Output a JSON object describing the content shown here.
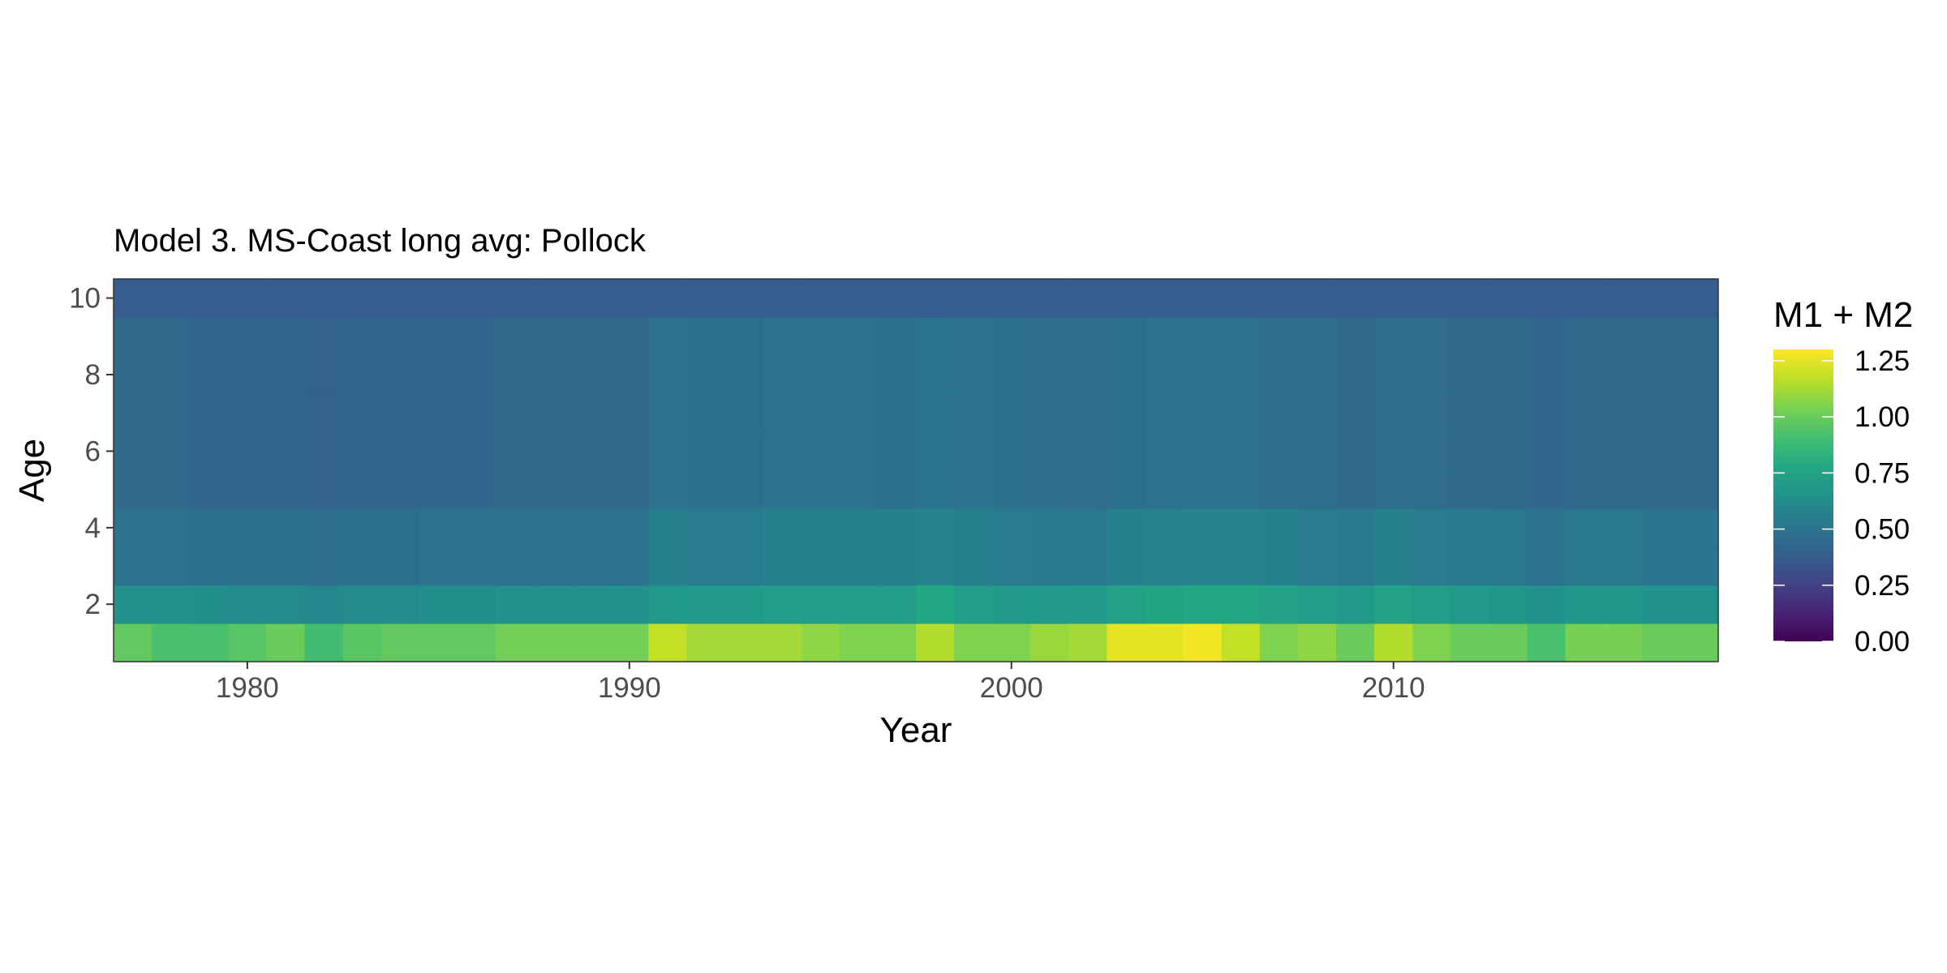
{
  "chart_data": {
    "type": "heatmap",
    "title": "Model 3. MS-Coast long avg: Pollock",
    "xlabel": "Year",
    "ylabel": "Age",
    "x": [
      1977,
      1978,
      1979,
      1980,
      1981,
      1982,
      1983,
      1984,
      1985,
      1986,
      1987,
      1988,
      1989,
      1990,
      1991,
      1992,
      1993,
      1994,
      1995,
      1996,
      1997,
      1998,
      1999,
      2000,
      2001,
      2002,
      2003,
      2004,
      2005,
      2006,
      2007,
      2008,
      2009,
      2010,
      2011,
      2012,
      2013,
      2014,
      2015,
      2016,
      2017,
      2018
    ],
    "y": [
      1,
      2,
      3,
      4,
      5,
      6,
      7,
      8,
      9,
      10
    ],
    "xlim": [
      1976.5,
      2018.5
    ],
    "ylim": [
      0.5,
      10.5
    ],
    "x_ticks": [
      1980,
      1990,
      2000,
      2010
    ],
    "y_ticks": [
      2,
      4,
      6,
      8,
      10
    ],
    "grid": false,
    "legend": {
      "title": "M1 + M2",
      "position": "right",
      "colorscale": "viridis",
      "range": [
        0,
        1.3
      ],
      "ticks": [
        0,
        0.25,
        0.5,
        0.75,
        1.0,
        1.25
      ],
      "tick_labels": [
        "0.00",
        "0.25",
        "0.50",
        "0.75",
        "1.00",
        "1.25"
      ]
    },
    "age1_values": [
      0.98,
      0.92,
      0.92,
      0.95,
      1.0,
      0.9,
      0.96,
      0.98,
      0.98,
      0.98,
      1.02,
      1.02,
      1.02,
      1.02,
      1.18,
      1.12,
      1.12,
      1.12,
      1.08,
      1.05,
      1.05,
      1.15,
      1.05,
      1.05,
      1.1,
      1.12,
      1.25,
      1.25,
      1.28,
      1.18,
      1.05,
      1.08,
      1.0,
      1.15,
      1.05,
      1.0,
      1.0,
      0.92,
      1.03,
      1.03,
      1.0,
      1.0
    ],
    "age2_values": [
      0.66,
      0.66,
      0.64,
      0.62,
      0.62,
      0.6,
      0.62,
      0.62,
      0.64,
      0.64,
      0.66,
      0.66,
      0.66,
      0.66,
      0.7,
      0.7,
      0.7,
      0.72,
      0.72,
      0.72,
      0.72,
      0.78,
      0.72,
      0.7,
      0.7,
      0.7,
      0.74,
      0.76,
      0.78,
      0.78,
      0.74,
      0.72,
      0.7,
      0.74,
      0.72,
      0.7,
      0.68,
      0.66,
      0.68,
      0.68,
      0.66,
      0.66
    ],
    "ages3to4_values": [
      0.5,
      0.5,
      0.48,
      0.48,
      0.48,
      0.47,
      0.48,
      0.48,
      0.49,
      0.49,
      0.5,
      0.5,
      0.5,
      0.5,
      0.56,
      0.54,
      0.54,
      0.56,
      0.56,
      0.56,
      0.56,
      0.58,
      0.56,
      0.54,
      0.53,
      0.52,
      0.56,
      0.57,
      0.58,
      0.58,
      0.56,
      0.54,
      0.53,
      0.56,
      0.54,
      0.53,
      0.52,
      0.5,
      0.52,
      0.52,
      0.51,
      0.51
    ],
    "ages5to9_values": [
      0.45,
      0.44,
      0.42,
      0.42,
      0.42,
      0.41,
      0.42,
      0.42,
      0.43,
      0.43,
      0.44,
      0.44,
      0.44,
      0.44,
      0.5,
      0.48,
      0.48,
      0.49,
      0.49,
      0.49,
      0.48,
      0.51,
      0.49,
      0.48,
      0.47,
      0.46,
      0.48,
      0.49,
      0.5,
      0.49,
      0.47,
      0.46,
      0.45,
      0.47,
      0.46,
      0.45,
      0.44,
      0.43,
      0.44,
      0.44,
      0.44,
      0.44
    ],
    "age10_values": [
      0.38,
      0.38,
      0.38,
      0.38,
      0.38,
      0.38,
      0.38,
      0.38,
      0.38,
      0.38,
      0.38,
      0.38,
      0.38,
      0.38,
      0.38,
      0.38,
      0.38,
      0.38,
      0.38,
      0.38,
      0.38,
      0.38,
      0.38,
      0.38,
      0.38,
      0.38,
      0.38,
      0.38,
      0.38,
      0.38,
      0.38,
      0.38,
      0.38,
      0.38,
      0.38,
      0.38,
      0.38,
      0.38,
      0.38,
      0.38,
      0.38,
      0.38
    ]
  }
}
